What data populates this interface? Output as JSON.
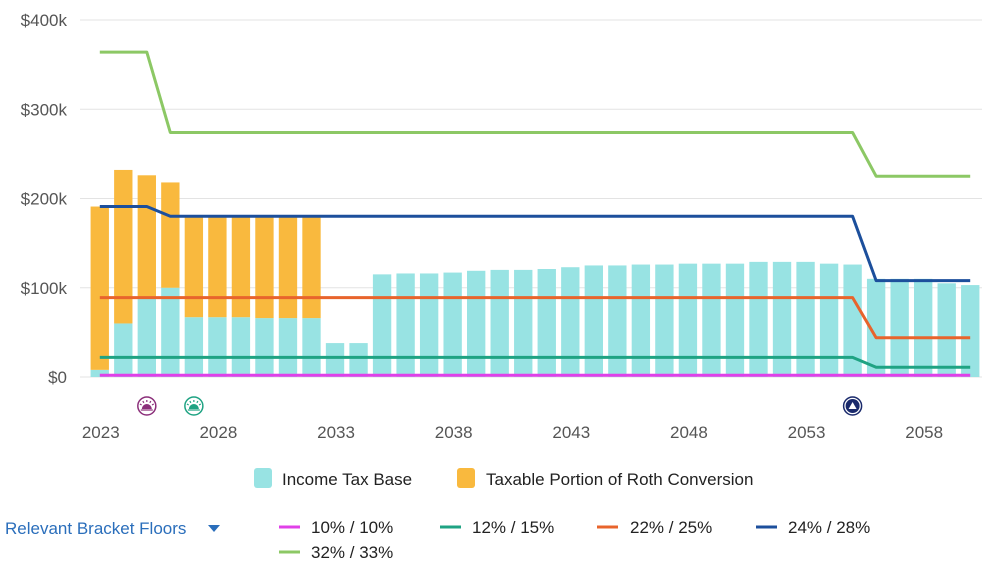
{
  "chart_data": {
    "type": "bar",
    "y_axis": {
      "min": 0,
      "max": 400000,
      "ticks": [
        "$0",
        "$100k",
        "$200k",
        "$300k",
        "$400k"
      ],
      "tick_values": [
        0,
        100000,
        200000,
        300000,
        400000
      ]
    },
    "x_axis": {
      "tick_labels": [
        "2023",
        "2028",
        "2033",
        "2038",
        "2043",
        "2048",
        "2053",
        "2058"
      ],
      "tick_years": [
        2023,
        2028,
        2033,
        2038,
        2043,
        2048,
        2053,
        2058
      ],
      "year_start": 2023,
      "year_end": 2060
    },
    "years": [
      2023,
      2024,
      2025,
      2026,
      2027,
      2028,
      2029,
      2030,
      2031,
      2032,
      2033,
      2034,
      2035,
      2036,
      2037,
      2038,
      2039,
      2040,
      2041,
      2042,
      2043,
      2044,
      2045,
      2046,
      2047,
      2048,
      2049,
      2050,
      2051,
      2052,
      2053,
      2054,
      2055,
      2056,
      2057,
      2058,
      2059,
      2060
    ],
    "series": [
      {
        "name": "Income Tax Base",
        "color": "#98e3e3",
        "values": [
          8000,
          60000,
          88000,
          100000,
          67000,
          67000,
          67000,
          66000,
          66000,
          66000,
          38000,
          38000,
          115000,
          116000,
          116000,
          117000,
          119000,
          120000,
          120000,
          121000,
          123000,
          125000,
          125000,
          126000,
          126000,
          127000,
          127000,
          127000,
          129000,
          129000,
          129000,
          127000,
          126000,
          110000,
          110000,
          110000,
          105000,
          103000
        ]
      },
      {
        "name": "Taxable Portion of Roth Conversion",
        "color": "#f9b93e",
        "values": [
          183000,
          172000,
          138000,
          118000,
          112000,
          112000,
          112000,
          113000,
          113000,
          113000,
          0,
          0,
          0,
          0,
          0,
          0,
          0,
          0,
          0,
          0,
          0,
          0,
          0,
          0,
          0,
          0,
          0,
          0,
          0,
          0,
          0,
          0,
          0,
          0,
          0,
          0,
          0,
          0
        ]
      }
    ],
    "bracket_lines": [
      {
        "name": "10% / 10%",
        "color": "#e040e8",
        "values": [
          2000,
          2000,
          2000,
          2000,
          2000,
          2000,
          2000,
          2000,
          2000,
          2000,
          2000,
          2000,
          2000,
          2000,
          2000,
          2000,
          2000,
          2000,
          2000,
          2000,
          2000,
          2000,
          2000,
          2000,
          2000,
          2000,
          2000,
          2000,
          2000,
          2000,
          2000,
          2000,
          2000,
          2000,
          2000,
          2000,
          2000,
          2000
        ]
      },
      {
        "name": "12% / 15%",
        "color": "#1fa383",
        "values": [
          22000,
          22000,
          22000,
          22000,
          22000,
          22000,
          22000,
          22000,
          22000,
          22000,
          22000,
          22000,
          22000,
          22000,
          22000,
          22000,
          22000,
          22000,
          22000,
          22000,
          22000,
          22000,
          22000,
          22000,
          22000,
          22000,
          22000,
          22000,
          22000,
          22000,
          22000,
          22000,
          22000,
          11000,
          11000,
          11000,
          11000,
          11000
        ]
      },
      {
        "name": "22% / 25%",
        "color": "#e8642c",
        "values": [
          89000,
          89000,
          89000,
          89000,
          89000,
          89000,
          89000,
          89000,
          89000,
          89000,
          89000,
          89000,
          89000,
          89000,
          89000,
          89000,
          89000,
          89000,
          89000,
          89000,
          89000,
          89000,
          89000,
          89000,
          89000,
          89000,
          89000,
          89000,
          89000,
          89000,
          89000,
          89000,
          89000,
          44000,
          44000,
          44000,
          44000,
          44000
        ]
      },
      {
        "name": "24% / 28%",
        "color": "#1c4f9c",
        "values": [
          191000,
          191000,
          191000,
          180000,
          180000,
          180000,
          180000,
          180000,
          180000,
          180000,
          180000,
          180000,
          180000,
          180000,
          180000,
          180000,
          180000,
          180000,
          180000,
          180000,
          180000,
          180000,
          180000,
          180000,
          180000,
          180000,
          180000,
          180000,
          180000,
          180000,
          180000,
          180000,
          180000,
          108000,
          108000,
          108000,
          108000,
          108000
        ]
      },
      {
        "name": "32% / 33%",
        "color": "#8cc865",
        "values": [
          364000,
          364000,
          364000,
          274000,
          274000,
          274000,
          274000,
          274000,
          274000,
          274000,
          274000,
          274000,
          274000,
          274000,
          274000,
          274000,
          274000,
          274000,
          274000,
          274000,
          274000,
          274000,
          274000,
          274000,
          274000,
          274000,
          274000,
          274000,
          274000,
          274000,
          274000,
          274000,
          274000,
          225000,
          225000,
          225000,
          225000,
          225000
        ]
      }
    ],
    "markers": [
      {
        "year": 2025,
        "icon": "sunrise-icon",
        "color": "#8b2f7a"
      },
      {
        "year": 2027,
        "icon": "sunrise-icon",
        "color": "#1fa383"
      },
      {
        "year": 2055,
        "icon": "triangle-up-icon",
        "color": "#1a2a6c"
      }
    ],
    "legend": {
      "bars": [
        "Income Tax Base",
        "Taxable Portion of Roth Conversion"
      ],
      "dropdown_label": "Relevant Bracket Floors",
      "lines": [
        "10% / 10%",
        "12% / 15%",
        "22% / 25%",
        "24% / 28%",
        "32% / 33%"
      ]
    }
  }
}
